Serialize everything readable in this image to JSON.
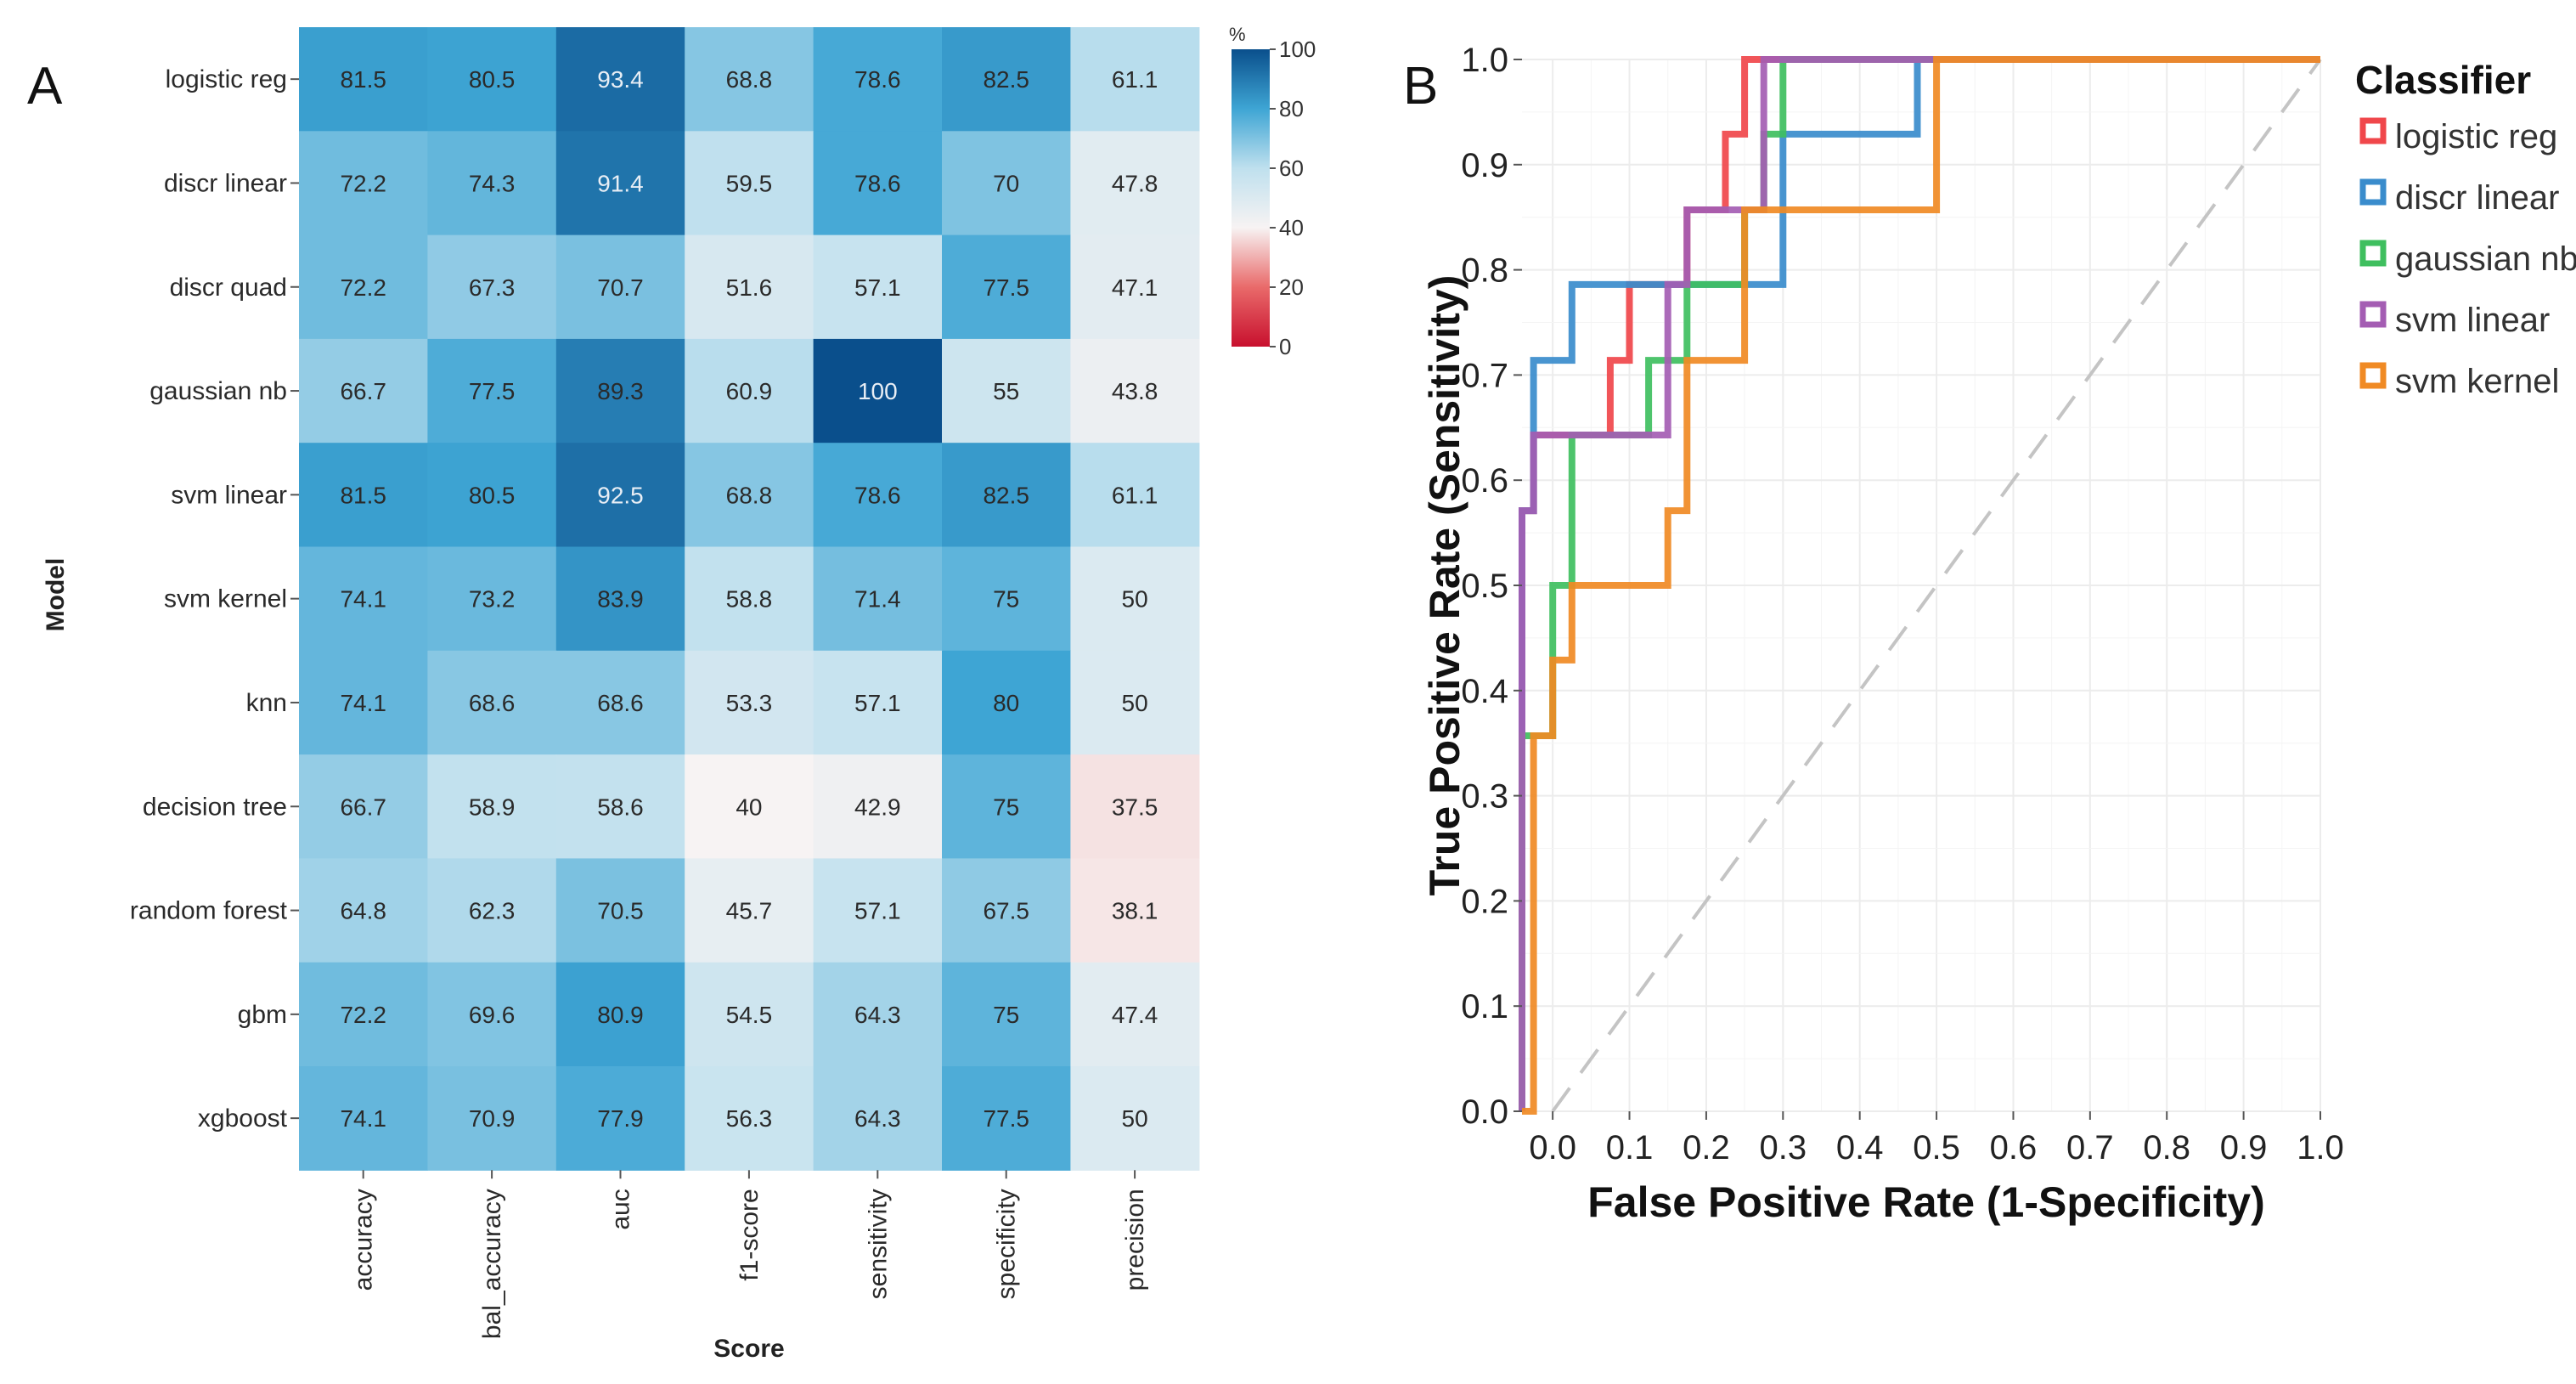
{
  "panels": {
    "heatmap_letter": "A",
    "roc_letter": "B"
  },
  "chart_data": [
    {
      "type": "heatmap",
      "x_categories": [
        "accuracy",
        "bal_accuracy",
        "auc",
        "f1-score",
        "sensitivity",
        "specificity",
        "precision"
      ],
      "y_categories": [
        "logistic reg",
        "discr linear",
        "discr quad",
        "gaussian nb",
        "svm linear",
        "svm kernel",
        "knn",
        "decision tree",
        "random forest",
        "gbm",
        "xgboost"
      ],
      "values": [
        [
          81.5,
          80.5,
          93.4,
          68.8,
          78.6,
          82.5,
          61.1
        ],
        [
          72.2,
          74.3,
          91.4,
          59.5,
          78.6,
          70,
          47.8
        ],
        [
          72.2,
          67.3,
          70.7,
          51.6,
          57.1,
          77.5,
          47.1
        ],
        [
          66.7,
          77.5,
          89.3,
          60.9,
          100,
          55,
          43.8
        ],
        [
          81.5,
          80.5,
          92.5,
          68.8,
          78.6,
          82.5,
          61.1
        ],
        [
          74.1,
          73.2,
          83.9,
          58.8,
          71.4,
          75,
          50
        ],
        [
          74.1,
          68.6,
          68.6,
          53.3,
          57.1,
          80,
          50
        ],
        [
          66.7,
          58.9,
          58.6,
          40,
          42.9,
          75,
          37.5
        ],
        [
          64.8,
          62.3,
          70.5,
          45.7,
          57.1,
          67.5,
          38.1
        ],
        [
          72.2,
          69.6,
          80.9,
          54.5,
          64.3,
          75,
          47.4
        ],
        [
          74.1,
          70.9,
          77.9,
          56.3,
          64.3,
          77.5,
          50
        ]
      ],
      "value_labels": [
        [
          "81.5",
          "80.5",
          "93.4",
          "68.8",
          "78.6",
          "82.5",
          "61.1"
        ],
        [
          "72.2",
          "74.3",
          "91.4",
          "59.5",
          "78.6",
          "70",
          "47.8"
        ],
        [
          "72.2",
          "67.3",
          "70.7",
          "51.6",
          "57.1",
          "77.5",
          "47.1"
        ],
        [
          "66.7",
          "77.5",
          "89.3",
          "60.9",
          "100",
          "55",
          "43.8"
        ],
        [
          "81.5",
          "80.5",
          "92.5",
          "68.8",
          "78.6",
          "82.5",
          "61.1"
        ],
        [
          "74.1",
          "73.2",
          "83.9",
          "58.8",
          "71.4",
          "75",
          "50"
        ],
        [
          "74.1",
          "68.6",
          "68.6",
          "53.3",
          "57.1",
          "80",
          "50"
        ],
        [
          "66.7",
          "58.9",
          "58.6",
          "40",
          "42.9",
          "75",
          "37.5"
        ],
        [
          "64.8",
          "62.3",
          "70.5",
          "45.7",
          "57.1",
          "67.5",
          "38.1"
        ],
        [
          "72.2",
          "69.6",
          "80.9",
          "54.5",
          "64.3",
          "75",
          "47.4"
        ],
        [
          "74.1",
          "70.9",
          "77.9",
          "56.3",
          "64.3",
          "77.5",
          "50"
        ]
      ],
      "xlabel": "Score",
      "ylabel": "Model",
      "colorbar": {
        "title": "%",
        "range": [
          0,
          100
        ],
        "ticks": [
          0,
          20,
          40,
          60,
          80,
          100
        ],
        "tick_labels": [
          "0",
          "20",
          "40",
          "60",
          "80",
          "100"
        ],
        "colors": [
          "#c8102e",
          "#f7f3f3",
          "#0a4f8c"
        ]
      }
    },
    {
      "type": "line",
      "xlabel": "False Positive Rate (1-Specificity)",
      "ylabel": "True Positive Rate (Sensitivity)",
      "xlim": [
        -0.04,
        1.0
      ],
      "ylim": [
        0.0,
        1.0
      ],
      "x_ticks": [
        0.0,
        0.1,
        0.2,
        0.3,
        0.4,
        0.5,
        0.6,
        0.7,
        0.8,
        0.9,
        1.0
      ],
      "x_tick_labels": [
        "0.0",
        "0.1",
        "0.2",
        "0.3",
        "0.4",
        "0.5",
        "0.6",
        "0.7",
        "0.8",
        "0.9",
        "1.0"
      ],
      "y_ticks": [
        0.0,
        0.1,
        0.2,
        0.3,
        0.4,
        0.5,
        0.6,
        0.7,
        0.8,
        0.9,
        1.0
      ],
      "y_tick_labels": [
        "0.0",
        "0.1",
        "0.2",
        "0.3",
        "0.4",
        "0.5",
        "0.6",
        "0.7",
        "0.8",
        "0.9",
        "1.0"
      ],
      "grid": true,
      "legend_title": "Classifier",
      "legend_position": "right",
      "diagonal": "dashed",
      "series": [
        {
          "name": "logistic reg",
          "color": "#f0474b",
          "points": [
            [
              -0.04,
              0.0
            ],
            [
              -0.04,
              0.571
            ],
            [
              -0.025,
              0.571
            ],
            [
              -0.025,
              0.643
            ],
            [
              0.075,
              0.643
            ],
            [
              0.075,
              0.714
            ],
            [
              0.1,
              0.714
            ],
            [
              0.1,
              0.786
            ],
            [
              0.125,
              0.786
            ],
            [
              0.125,
              0.786
            ],
            [
              0.175,
              0.786
            ],
            [
              0.175,
              0.857
            ],
            [
              0.225,
              0.857
            ],
            [
              0.225,
              0.929
            ],
            [
              0.25,
              0.929
            ],
            [
              0.25,
              1.0
            ],
            [
              1.0,
              1.0
            ]
          ]
        },
        {
          "name": "discr linear",
          "color": "#3a8ccc",
          "points": [
            [
              -0.04,
              0.0
            ],
            [
              -0.04,
              0.571
            ],
            [
              -0.025,
              0.571
            ],
            [
              -0.025,
              0.714
            ],
            [
              0.025,
              0.714
            ],
            [
              0.025,
              0.786
            ],
            [
              0.3,
              0.786
            ],
            [
              0.3,
              0.929
            ],
            [
              0.475,
              0.929
            ],
            [
              0.475,
              1.0
            ],
            [
              1.0,
              1.0
            ]
          ]
        },
        {
          "name": "gaussian nb",
          "color": "#3fbf5f",
          "points": [
            [
              -0.04,
              0.0
            ],
            [
              -0.04,
              0.357
            ],
            [
              0.0,
              0.357
            ],
            [
              0.0,
              0.5
            ],
            [
              0.025,
              0.5
            ],
            [
              0.025,
              0.643
            ],
            [
              0.125,
              0.643
            ],
            [
              0.125,
              0.714
            ],
            [
              0.175,
              0.714
            ],
            [
              0.175,
              0.786
            ],
            [
              0.25,
              0.786
            ],
            [
              0.25,
              0.857
            ],
            [
              0.275,
              0.857
            ],
            [
              0.275,
              0.929
            ],
            [
              0.3,
              0.929
            ],
            [
              0.3,
              1.0
            ],
            [
              1.0,
              1.0
            ]
          ]
        },
        {
          "name": "svm linear",
          "color": "#a45db3",
          "points": [
            [
              -0.04,
              0.0
            ],
            [
              -0.04,
              0.571
            ],
            [
              -0.025,
              0.571
            ],
            [
              -0.025,
              0.643
            ],
            [
              0.15,
              0.643
            ],
            [
              0.15,
              0.786
            ],
            [
              0.175,
              0.786
            ],
            [
              0.175,
              0.857
            ],
            [
              0.275,
              0.857
            ],
            [
              0.275,
              1.0
            ],
            [
              1.0,
              1.0
            ]
          ]
        },
        {
          "name": "svm kernel",
          "color": "#f08a24",
          "points": [
            [
              -0.04,
              0.0
            ],
            [
              -0.025,
              0.0
            ],
            [
              -0.025,
              0.357
            ],
            [
              0.0,
              0.357
            ],
            [
              0.0,
              0.429
            ],
            [
              0.025,
              0.429
            ],
            [
              0.025,
              0.5
            ],
            [
              0.15,
              0.5
            ],
            [
              0.15,
              0.571
            ],
            [
              0.175,
              0.571
            ],
            [
              0.175,
              0.714
            ],
            [
              0.25,
              0.714
            ],
            [
              0.25,
              0.857
            ],
            [
              0.5,
              0.857
            ],
            [
              0.5,
              1.0
            ],
            [
              1.0,
              1.0
            ]
          ]
        }
      ]
    }
  ]
}
